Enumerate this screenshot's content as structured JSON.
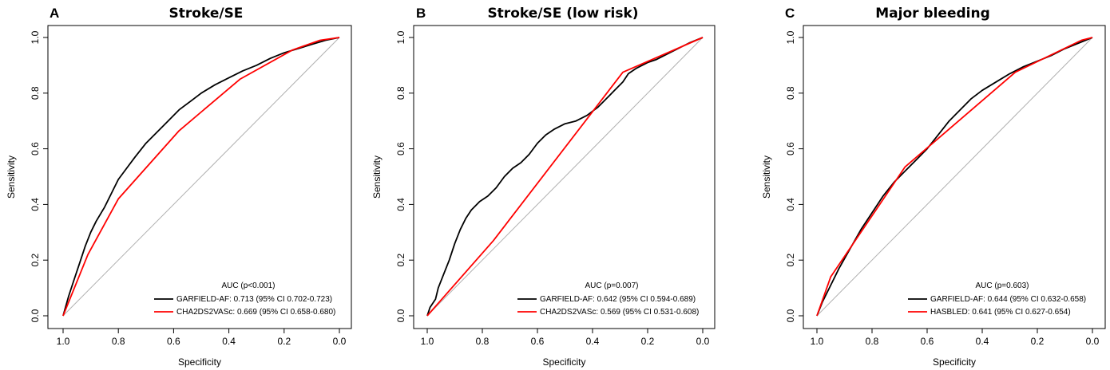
{
  "chart_data": [
    {
      "type": "line",
      "panel": "A",
      "title": "Stroke/SE",
      "xlabel": "Specificity",
      "ylabel": "Sensitivity",
      "xlim": [
        1.0,
        0.0
      ],
      "ylim": [
        0.0,
        1.0
      ],
      "x_ticks": [
        "1.0",
        "0.8",
        "0.6",
        "0.4",
        "0.2",
        "0.0"
      ],
      "y_ticks": [
        "0.0",
        "0.2",
        "0.4",
        "0.6",
        "0.8",
        "1.0"
      ],
      "reference_line": {
        "color": "#b0b0b0",
        "from": [
          1.0,
          0.0
        ],
        "to": [
          0.0,
          1.0
        ]
      },
      "legend_title": "AUC (p<0.001)",
      "legend_position": "bottom-right",
      "series": [
        {
          "name": "GARFIELD-AF: 0.713 (95% CI 0.702-0.723)",
          "color": "#000000",
          "points": [
            [
              1.0,
              0.0
            ],
            [
              0.98,
              0.07
            ],
            [
              0.96,
              0.13
            ],
            [
              0.94,
              0.19
            ],
            [
              0.92,
              0.25
            ],
            [
              0.9,
              0.3
            ],
            [
              0.88,
              0.34
            ],
            [
              0.85,
              0.39
            ],
            [
              0.82,
              0.45
            ],
            [
              0.8,
              0.49
            ],
            [
              0.77,
              0.53
            ],
            [
              0.74,
              0.57
            ],
            [
              0.7,
              0.62
            ],
            [
              0.66,
              0.66
            ],
            [
              0.62,
              0.7
            ],
            [
              0.58,
              0.74
            ],
            [
              0.54,
              0.77
            ],
            [
              0.5,
              0.8
            ],
            [
              0.45,
              0.83
            ],
            [
              0.4,
              0.855
            ],
            [
              0.35,
              0.88
            ],
            [
              0.3,
              0.9
            ],
            [
              0.25,
              0.925
            ],
            [
              0.2,
              0.945
            ],
            [
              0.15,
              0.96
            ],
            [
              0.1,
              0.975
            ],
            [
              0.05,
              0.99
            ],
            [
              0.0,
              1.0
            ]
          ]
        },
        {
          "name": "CHA2DS2VASc: 0.669 (95% CI 0.658-0.680)",
          "color": "#ff0000",
          "points": [
            [
              1.0,
              0.0
            ],
            [
              0.91,
              0.22
            ],
            [
              0.8,
              0.42
            ],
            [
              0.58,
              0.665
            ],
            [
              0.36,
              0.85
            ],
            [
              0.17,
              0.955
            ],
            [
              0.07,
              0.99
            ],
            [
              0.0,
              1.0
            ]
          ]
        }
      ]
    },
    {
      "type": "line",
      "panel": "B",
      "title": "Stroke/SE (low risk)",
      "xlabel": "Specificity",
      "ylabel": "Sensitivity",
      "xlim": [
        1.0,
        0.0
      ],
      "ylim": [
        0.0,
        1.0
      ],
      "x_ticks": [
        "1.0",
        "0.8",
        "0.6",
        "0.4",
        "0.2",
        "0.0"
      ],
      "y_ticks": [
        "0.0",
        "0.2",
        "0.4",
        "0.6",
        "0.8",
        "1.0"
      ],
      "reference_line": {
        "color": "#b0b0b0",
        "from": [
          1.0,
          0.0
        ],
        "to": [
          0.0,
          1.0
        ]
      },
      "legend_title": "AUC (p=0.007)",
      "legend_position": "bottom-right",
      "series": [
        {
          "name": "GARFIELD-AF: 0.642 (95% CI 0.594-0.689)",
          "color": "#000000",
          "points": [
            [
              1.0,
              0.0
            ],
            [
              0.99,
              0.03
            ],
            [
              0.97,
              0.06
            ],
            [
              0.96,
              0.1
            ],
            [
              0.94,
              0.15
            ],
            [
              0.92,
              0.2
            ],
            [
              0.9,
              0.26
            ],
            [
              0.88,
              0.31
            ],
            [
              0.86,
              0.35
            ],
            [
              0.84,
              0.38
            ],
            [
              0.81,
              0.41
            ],
            [
              0.78,
              0.43
            ],
            [
              0.75,
              0.46
            ],
            [
              0.72,
              0.5
            ],
            [
              0.69,
              0.53
            ],
            [
              0.66,
              0.55
            ],
            [
              0.63,
              0.58
            ],
            [
              0.6,
              0.62
            ],
            [
              0.57,
              0.65
            ],
            [
              0.54,
              0.67
            ],
            [
              0.5,
              0.69
            ],
            [
              0.46,
              0.7
            ],
            [
              0.42,
              0.72
            ],
            [
              0.38,
              0.75
            ],
            [
              0.35,
              0.78
            ],
            [
              0.32,
              0.81
            ],
            [
              0.29,
              0.84
            ],
            [
              0.27,
              0.87
            ],
            [
              0.24,
              0.89
            ],
            [
              0.2,
              0.91
            ],
            [
              0.17,
              0.92
            ],
            [
              0.13,
              0.94
            ],
            [
              0.09,
              0.96
            ],
            [
              0.05,
              0.98
            ],
            [
              0.0,
              1.0
            ]
          ]
        },
        {
          "name": "CHA2DS2VASc: 0.569 (95% CI 0.531-0.608)",
          "color": "#ff0000",
          "points": [
            [
              1.0,
              0.0
            ],
            [
              0.76,
              0.27
            ],
            [
              0.29,
              0.875
            ],
            [
              0.0,
              1.0
            ]
          ]
        }
      ]
    },
    {
      "type": "line",
      "panel": "C",
      "title": "Major bleeding",
      "xlabel": "Specificity",
      "ylabel": "Sensitivity",
      "xlim": [
        1.0,
        0.0
      ],
      "ylim": [
        0.0,
        1.0
      ],
      "x_ticks": [
        "1.0",
        "0.8",
        "0.6",
        "0.4",
        "0.2",
        "0.0"
      ],
      "y_ticks": [
        "0.0",
        "0.2",
        "0.4",
        "0.6",
        "0.8",
        "1.0"
      ],
      "reference_line": {
        "color": "#b0b0b0",
        "from": [
          1.0,
          0.0
        ],
        "to": [
          0.0,
          1.0
        ]
      },
      "legend_title": "AUC (p=0.603)",
      "legend_position": "bottom-right",
      "series": [
        {
          "name": "GARFIELD-AF: 0.644 (95% CI 0.632-0.658)",
          "color": "#000000",
          "points": [
            [
              1.0,
              0.0
            ],
            [
              0.98,
              0.05
            ],
            [
              0.95,
              0.11
            ],
            [
              0.92,
              0.17
            ],
            [
              0.88,
              0.24
            ],
            [
              0.84,
              0.31
            ],
            [
              0.8,
              0.37
            ],
            [
              0.76,
              0.43
            ],
            [
              0.72,
              0.48
            ],
            [
              0.68,
              0.52
            ],
            [
              0.64,
              0.56
            ],
            [
              0.6,
              0.6
            ],
            [
              0.56,
              0.65
            ],
            [
              0.52,
              0.7
            ],
            [
              0.48,
              0.74
            ],
            [
              0.44,
              0.78
            ],
            [
              0.4,
              0.81
            ],
            [
              0.35,
              0.84
            ],
            [
              0.3,
              0.87
            ],
            [
              0.25,
              0.895
            ],
            [
              0.2,
              0.915
            ],
            [
              0.15,
              0.935
            ],
            [
              0.1,
              0.96
            ],
            [
              0.05,
              0.98
            ],
            [
              0.0,
              1.0
            ]
          ]
        },
        {
          "name": "HASBLED: 0.641 (95% CI 0.627-0.654)",
          "color": "#ff0000",
          "points": [
            [
              1.0,
              0.0
            ],
            [
              0.95,
              0.14
            ],
            [
              0.68,
              0.535
            ],
            [
              0.28,
              0.875
            ],
            [
              0.04,
              0.99
            ],
            [
              0.0,
              1.0
            ]
          ]
        }
      ]
    }
  ]
}
